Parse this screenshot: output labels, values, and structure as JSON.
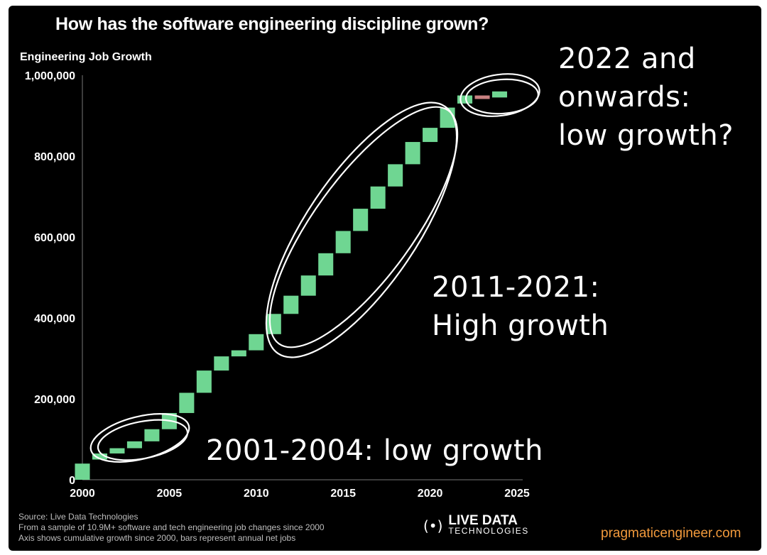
{
  "chart_data": {
    "type": "bar",
    "title": "How has the software engineering discipline grown?",
    "ylabel": "Engineering Job Growth",
    "xlabel": "",
    "x": [
      2000,
      2001,
      2002,
      2003,
      2004,
      2005,
      2006,
      2007,
      2008,
      2009,
      2010,
      2011,
      2012,
      2013,
      2014,
      2015,
      2016,
      2017,
      2018,
      2019,
      2020,
      2021,
      2022,
      2023,
      2024
    ],
    "start": [
      0,
      50000,
      65000,
      78000,
      95000,
      125000,
      165000,
      215000,
      270000,
      305000,
      320000,
      360000,
      410000,
      455000,
      505000,
      560000,
      615000,
      670000,
      725000,
      780000,
      835000,
      870000,
      930000,
      950000,
      945000
    ],
    "end": [
      40000,
      65000,
      78000,
      95000,
      125000,
      165000,
      215000,
      270000,
      305000,
      320000,
      360000,
      410000,
      455000,
      505000,
      560000,
      615000,
      670000,
      725000,
      780000,
      835000,
      870000,
      920000,
      950000,
      945000,
      960000
    ],
    "xlim": [
      2000,
      2025
    ],
    "ylim": [
      0,
      1000000
    ],
    "xticks": [
      "2000",
      "2005",
      "2010",
      "2015",
      "2020",
      "2025"
    ],
    "yticks": [
      "0",
      "200,000",
      "400,000",
      "600,000",
      "800,000",
      "1,000,000"
    ],
    "colors": {
      "positive": "#6fd692",
      "negative": "#c98181"
    },
    "annotations": [
      {
        "line1": "2022 and",
        "line2": "onwards:",
        "line3": "low growth?"
      },
      {
        "line1": "2011-2021:",
        "line2": "High growth"
      },
      {
        "line1": "2001-2004: low growth"
      }
    ]
  },
  "footer": {
    "source": "Source: Live Data Technologies",
    "sample": "From a sample of 10.9M+ software and tech engineering job changes since 2000",
    "axis_note": "Axis shows cumulative growth since 2000, bars represent annual net jobs"
  },
  "logo": {
    "icon": "broadcast-icon",
    "glyph": "(•)",
    "main": "LIVE DATA",
    "sub": "TECHNOLOGIES"
  },
  "brand": "pragmaticengineer.com"
}
